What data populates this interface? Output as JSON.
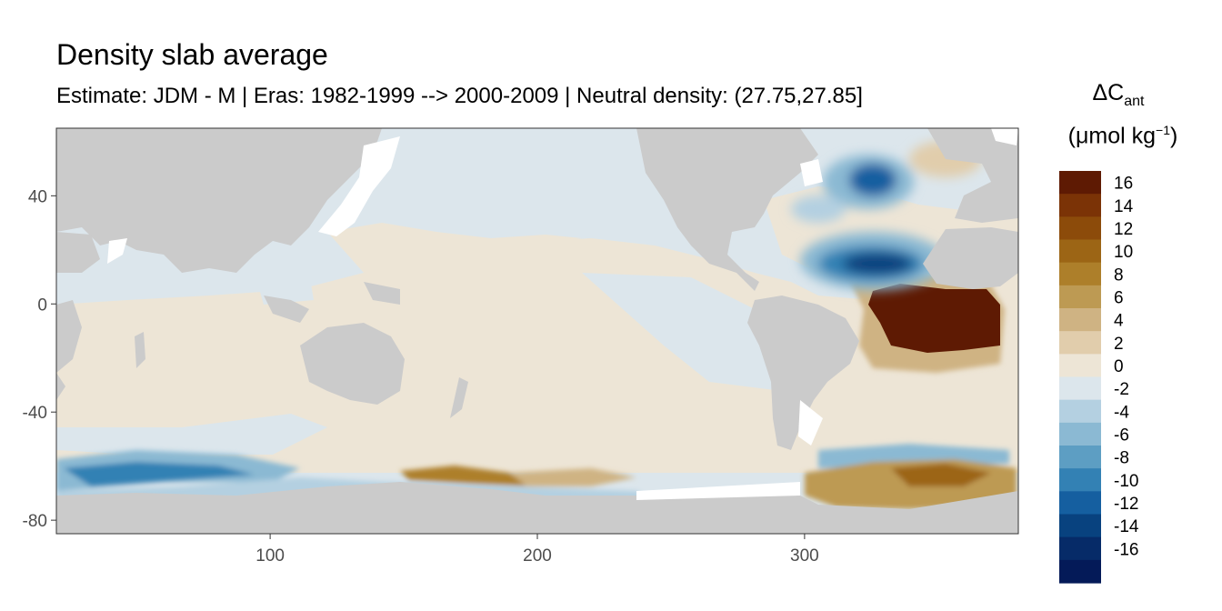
{
  "title": "Density slab average",
  "subtitle": "Estimate: JDM - M | Eras: 1982-1999 --> 2000-2009 | Neutral density: (27.75,27.85]",
  "legend": {
    "symbol": "ΔC",
    "subscript": "ant",
    "unit_prefix": "(μmol kg",
    "unit_exponent": "−1",
    "unit_suffix": ")",
    "bins": [
      {
        "label": "16",
        "color": "#5e1a03"
      },
      {
        "label": "14",
        "color": "#7b3306"
      },
      {
        "label": "12",
        "color": "#8c4b0a"
      },
      {
        "label": "10",
        "color": "#9c6515"
      },
      {
        "label": "8",
        "color": "#ad7f2a"
      },
      {
        "label": "6",
        "color": "#bd9a53"
      },
      {
        "label": "4",
        "color": "#cfb383"
      },
      {
        "label": "2",
        "color": "#e1cdac"
      },
      {
        "label": "0",
        "color": "#ede5d6"
      },
      {
        "label": "-2",
        "color": "#dce6ec"
      },
      {
        "label": "-4",
        "color": "#b4d0e1"
      },
      {
        "label": "-6",
        "color": "#8bb9d3"
      },
      {
        "label": "-8",
        "color": "#5d9ec3"
      },
      {
        "label": "-10",
        "color": "#3381b4"
      },
      {
        "label": "-12",
        "color": "#155fa0"
      },
      {
        "label": "-14",
        "color": "#08427f"
      },
      {
        "label": "-16",
        "color": "#062b68"
      },
      {
        "label": "",
        "color": "#041a58"
      }
    ]
  },
  "colors": {
    "land": "#cbcbcb",
    "ice": "#ffffff",
    "near_zero_blue": "#dce6ec",
    "near_zero_tan": "#ede5d6"
  },
  "chart_data": {
    "type": "heatmap",
    "title": "Density slab average",
    "subtitle": "Estimate: JDM - M | Eras: 1982-1999 --> 2000-2009 | Neutral density: (27.75,27.85]",
    "x_ticks": [
      "100",
      "200",
      "300"
    ],
    "y_ticks": [
      "40",
      "0",
      "-40",
      "-80"
    ],
    "xlim": [
      20,
      380
    ],
    "ylim": [
      -85,
      65
    ],
    "grid": false,
    "legend_position": "right",
    "features": [
      {
        "name": "equatorial Atlantic positive core",
        "lon": [
          330,
          375
        ],
        "lat": [
          -15,
          5
        ],
        "value": 16
      },
      {
        "name": "subtropical North Atlantic negative core",
        "lon": [
          300,
          345
        ],
        "lat": [
          10,
          28
        ],
        "value": -12
      },
      {
        "name": "Labrador/Irminger Sea negative core",
        "lon": [
          310,
          335
        ],
        "lat": [
          40,
          52
        ],
        "value": -10
      },
      {
        "name": "Pacific/Indian interior",
        "lon": [
          40,
          290
        ],
        "lat": [
          -50,
          55
        ],
        "value": 0
      },
      {
        "name": "Ross Sea positive patch",
        "lon": [
          150,
          210
        ],
        "lat": [
          -70,
          -62
        ],
        "value": 8
      },
      {
        "name": "Weddell Sea positive patch",
        "lon": [
          310,
          378
        ],
        "lat": [
          -75,
          -60
        ],
        "value": 6
      },
      {
        "name": "Southern Ocean negative band",
        "lon": [
          20,
          150
        ],
        "lat": [
          -70,
          -55
        ],
        "value": -6
      }
    ]
  }
}
